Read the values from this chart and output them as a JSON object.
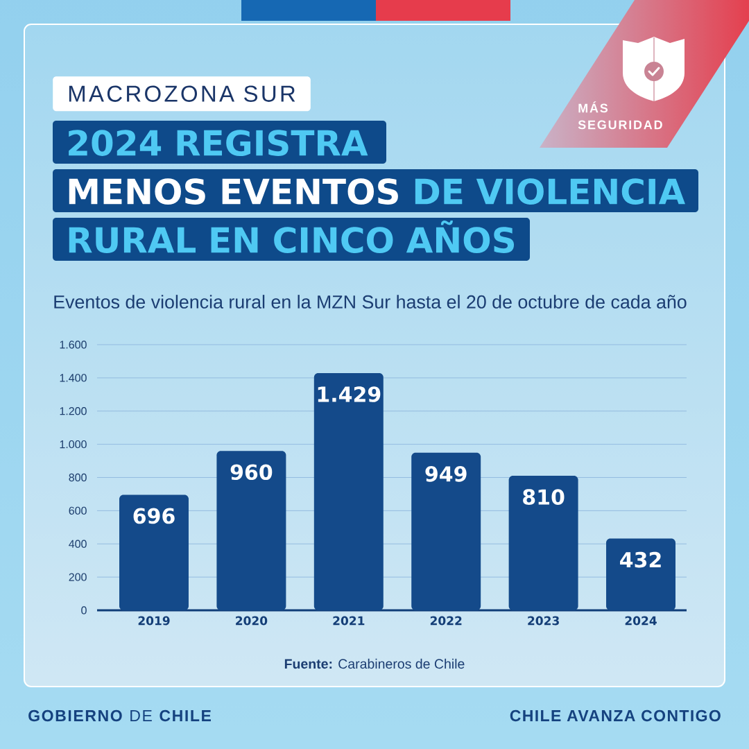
{
  "chart_data": {
    "type": "bar",
    "title": "2024 REGISTRA **MENOS EVENTOS** DE VIOLENCIA RURAL EN CINCO AÑOS",
    "subtitle": "Eventos de violencia rural en la MZN Sur hasta el 20 de octubre de cada año",
    "categories": [
      "2019",
      "2020",
      "2021",
      "2022",
      "2023",
      "2024"
    ],
    "values": [
      696,
      960,
      1429,
      949,
      810,
      432
    ],
    "value_labels": [
      "696",
      "960",
      "1.429",
      "949",
      "810",
      "432"
    ],
    "color": "#144a8a",
    "ylim": [
      0,
      1600
    ],
    "yticks": [
      0,
      200,
      400,
      600,
      800,
      {
        "value": 1000,
        "label": "1.000"
      },
      {
        "value": 1200,
        "label": "1.200"
      },
      {
        "value": 1400,
        "label": "1.400"
      },
      {
        "value": 1600,
        "label": "1.600"
      }
    ],
    "grid": "y",
    "annotations": [
      "MACROZONA SUR",
      "MÁS SEGURIDAD",
      "**Fuente:** Carabineros de Chile",
      "**GOBIERNO** DE **CHILE**",
      "CHILE AVANZA CONTIGO"
    ]
  }
}
